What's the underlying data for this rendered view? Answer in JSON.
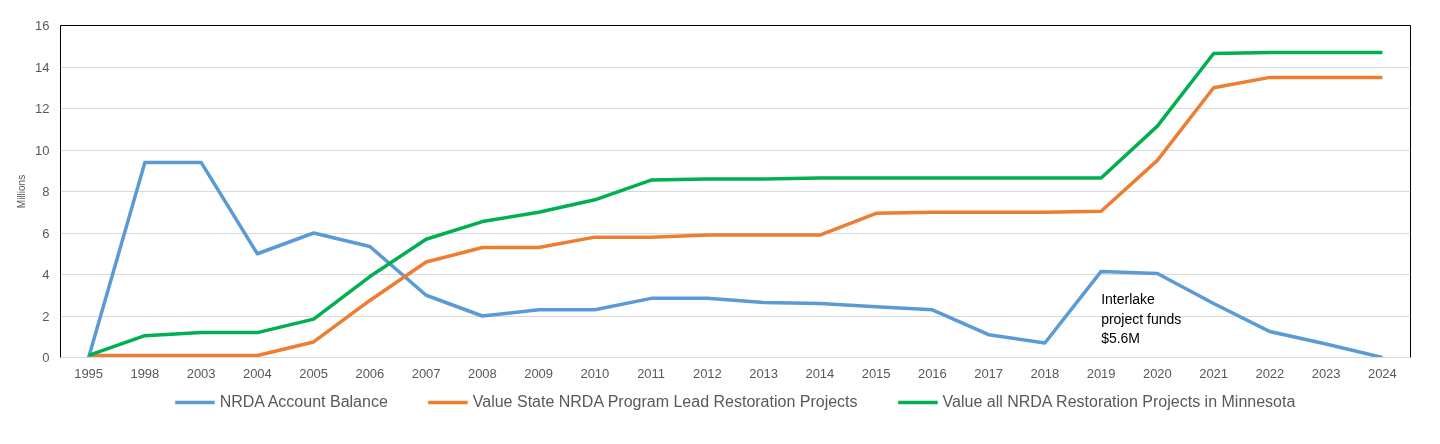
{
  "chart_data": {
    "type": "line",
    "ylabel": "Millions",
    "categories": [
      "1995",
      "1998",
      "2003",
      "2004",
      "2005",
      "2006",
      "2007",
      "2008",
      "2009",
      "2010",
      "2011",
      "2012",
      "2013",
      "2014",
      "2015",
      "2016",
      "2017",
      "2018",
      "2019",
      "2020",
      "2021",
      "2022",
      "2023",
      "2024"
    ],
    "series": [
      {
        "name": "NRDA Account Balance",
        "color": "#5b9bd5",
        "values": [
          0,
          9.4,
          9.4,
          5.0,
          6.0,
          5.35,
          3.0,
          2.0,
          2.3,
          2.3,
          2.85,
          2.85,
          2.65,
          2.6,
          2.45,
          2.3,
          1.1,
          0.7,
          4.15,
          4.05,
          2.6,
          1.25,
          0.65,
          0
        ]
      },
      {
        "name": "Value State NRDA Program Lead Restoration Projects",
        "color": "#ed7d31",
        "values": [
          0.1,
          0.1,
          0.1,
          0.1,
          0.75,
          2.75,
          4.6,
          5.3,
          5.3,
          5.8,
          5.8,
          5.9,
          5.9,
          5.9,
          6.95,
          7.0,
          7.0,
          7.0,
          7.05,
          9.5,
          13.0,
          13.5,
          13.5,
          13.5
        ]
      },
      {
        "name": "Value all NRDA Restoration Projects in Minnesota",
        "color": "#00b050",
        "values": [
          0.1,
          1.05,
          1.2,
          1.2,
          1.85,
          3.9,
          5.7,
          6.55,
          7.0,
          7.6,
          8.55,
          8.6,
          8.6,
          8.65,
          8.65,
          8.65,
          8.65,
          8.65,
          8.65,
          11.15,
          14.65,
          14.7,
          14.7,
          14.7
        ]
      }
    ],
    "ylim": [
      0,
      16
    ],
    "yticks": [
      0,
      2,
      4,
      6,
      8,
      10,
      12,
      14,
      16
    ],
    "grid": "y",
    "legend": "bottom",
    "line_style": "solid",
    "marker": "none",
    "annotations": [
      {
        "text": "Interlake\nproject funds\n$5.6M",
        "x": "2019",
        "y": 4.15
      }
    ]
  }
}
